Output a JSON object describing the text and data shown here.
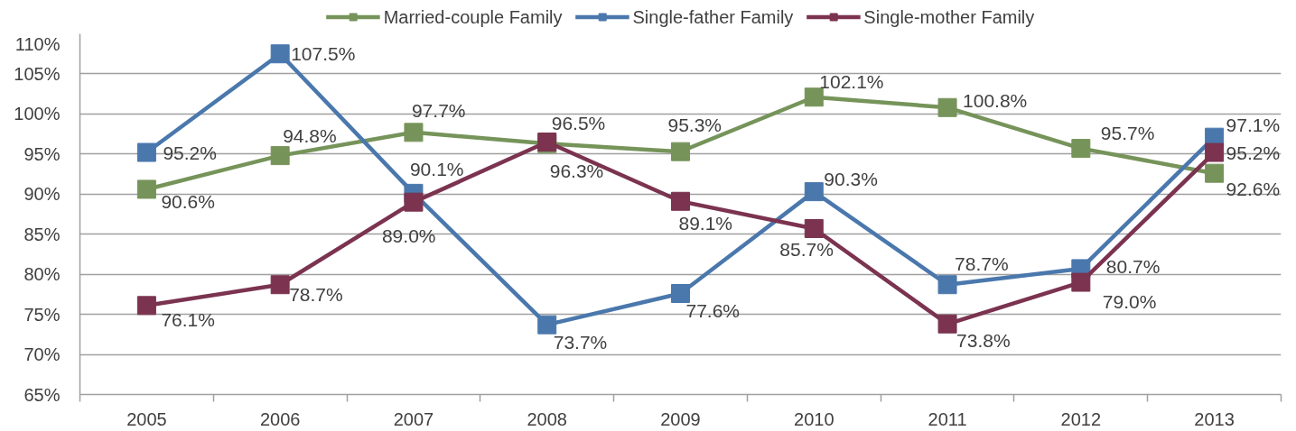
{
  "chart_data": {
    "type": "line",
    "categories": [
      "2005",
      "2006",
      "2007",
      "2008",
      "2009",
      "2010",
      "2011",
      "2012",
      "2013"
    ],
    "ylim": [
      65,
      110
    ],
    "yticks": [
      {
        "value": 65,
        "label": "65%"
      },
      {
        "value": 70,
        "label": "70%"
      },
      {
        "value": 75,
        "label": "75%"
      },
      {
        "value": 80,
        "label": "80%"
      },
      {
        "value": 85,
        "label": "85%"
      },
      {
        "value": 90,
        "label": "90%"
      },
      {
        "value": 95,
        "label": "95%"
      },
      {
        "value": 100,
        "label": "100%"
      },
      {
        "value": 105,
        "label": "105%"
      },
      {
        "value": 110,
        "label": "110%"
      }
    ],
    "grid": "y",
    "legend": "top",
    "marker": "square",
    "line_style": "solid",
    "series": [
      {
        "name": "Married-couple Family",
        "color": "#76945a",
        "values": [
          90.6,
          94.8,
          97.7,
          96.3,
          95.3,
          102.1,
          100.8,
          95.7,
          92.6
        ],
        "value_labels": [
          "90.6%",
          "94.8%",
          "97.7%",
          "96.3%",
          "95.3%",
          "102.1%",
          "100.8%",
          "95.7%",
          "92.6%"
        ]
      },
      {
        "name": "Single-father Family",
        "color": "#4a78ad",
        "values": [
          95.2,
          107.5,
          90.1,
          73.7,
          77.6,
          90.3,
          78.7,
          80.7,
          97.1
        ],
        "value_labels": [
          "95.2%",
          "107.5%",
          "90.1%",
          "73.7%",
          "77.6%",
          "90.3%",
          "78.7%",
          "80.7%",
          "97.1%"
        ]
      },
      {
        "name": "Single-mother Family",
        "color": "#7b3350",
        "values": [
          76.1,
          78.7,
          89.0,
          96.5,
          89.1,
          85.7,
          73.8,
          79.0,
          95.2
        ],
        "value_labels": [
          "76.1%",
          "78.7%",
          "89.0%",
          "96.5%",
          "89.1%",
          "85.7%",
          "73.8%",
          "79.0%",
          "95.2%"
        ]
      }
    ]
  }
}
